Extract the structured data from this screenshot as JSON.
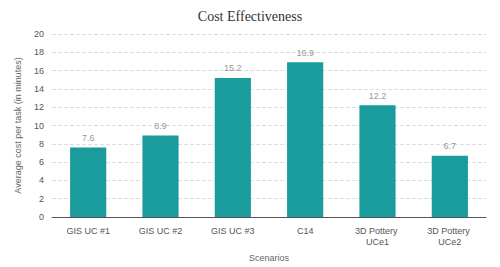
{
  "chart_data": {
    "type": "bar",
    "title": "Cost Effectiveness",
    "xlabel": "Scenarios",
    "ylabel": "Average cost per task (in minutes)",
    "categories": [
      "GIS UC #1",
      "GIS UC #2",
      "GIS UC #3",
      "C14",
      "3D Pottery UCe1",
      "3D Pottery UCe2"
    ],
    "values": [
      7.6,
      8.9,
      15.2,
      16.9,
      12.2,
      6.7
    ],
    "color": "#1a9c9c",
    "ylim": [
      0,
      20
    ],
    "yticks": [
      0,
      2,
      4,
      6,
      8,
      10,
      12,
      14,
      16,
      18,
      20
    ],
    "grid": true,
    "data_labels": true
  }
}
